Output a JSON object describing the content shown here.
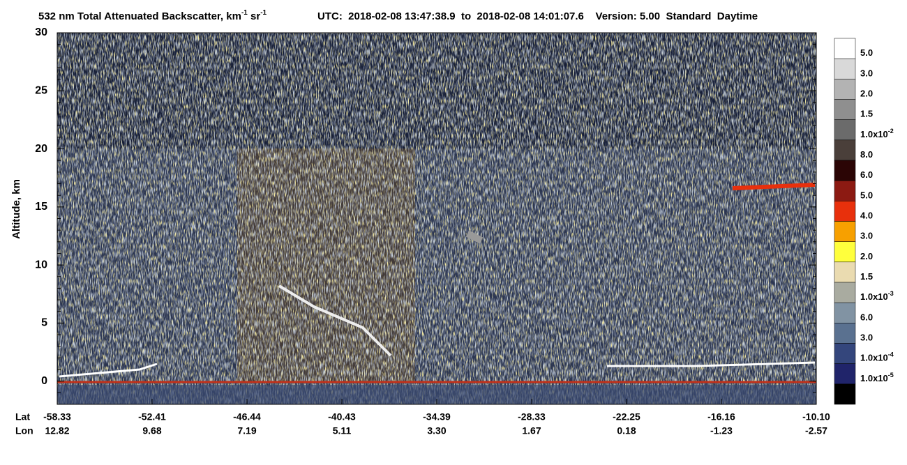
{
  "chart_data": {
    "type": "heatmap",
    "title_segments": [
      {
        "text": "532 nm Total Attenuated Backscatter, km"
      },
      {
        "text": "-1",
        "sup": true
      },
      {
        "text": " sr"
      },
      {
        "text": "-1",
        "sup": true
      }
    ],
    "subtitle": "UTC:  2018-02-08 13:47:38.9  to  2018-02-08 14:01:07.6    Version: 5.00  Standard  Daytime",
    "ylabel": "Altitude, km",
    "ylim": [
      -2,
      30
    ],
    "yticks": [
      0,
      5,
      10,
      15,
      20,
      25,
      30
    ],
    "x_rows": [
      {
        "name": "Lat",
        "labels": [
          "-58.33",
          "-52.41",
          "-46.44",
          "-40.43",
          "-34.39",
          "-28.33",
          "-22.25",
          "-16.16",
          "-10.10"
        ]
      },
      {
        "name": "Lon",
        "labels": [
          "12.82",
          "9.68",
          "7.19",
          "5.11",
          "3.30",
          "1.67",
          "0.18",
          "-1.23",
          "-2.57"
        ]
      }
    ],
    "colorbar": {
      "colors": [
        "#ffffff",
        "#d9d9d9",
        "#b3b3b3",
        "#8f8f8f",
        "#6b6b6b",
        "#4a3f3a",
        "#2b0505",
        "#8c1a12",
        "#e8300c",
        "#f7a000",
        "#ffff3c",
        "#eadbb0",
        "#a9aba0",
        "#8193a3",
        "#5a7190",
        "#34467c",
        "#20246a",
        "#000000"
      ],
      "labels": [
        {
          "text": "5.0"
        },
        {
          "text": "3.0"
        },
        {
          "text": "2.0"
        },
        {
          "text": "1.5"
        },
        {
          "text": "1.0x10",
          "sup": "-2"
        },
        {
          "text": "8.0"
        },
        {
          "text": "6.0"
        },
        {
          "text": "5.0"
        },
        {
          "text": "4.0"
        },
        {
          "text": "3.0"
        },
        {
          "text": "2.0"
        },
        {
          "text": "1.5"
        },
        {
          "text": "1.0x10",
          "sup": "-3"
        },
        {
          "text": "6.0"
        },
        {
          "text": "3.0"
        },
        {
          "text": "1.0x10",
          "sup": "-4"
        },
        {
          "text": "1.0x10",
          "sup": "-5"
        }
      ]
    }
  }
}
